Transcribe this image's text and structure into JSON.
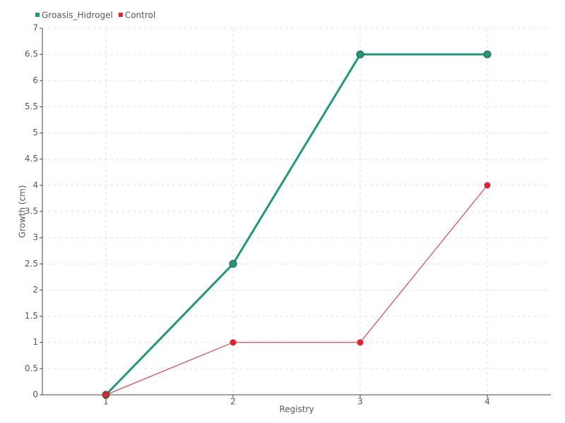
{
  "chart_data": {
    "type": "line",
    "x_label": "Registry",
    "y_label": "Growth (cm)",
    "x": [
      1,
      2,
      3,
      4
    ],
    "xlim": [
      0.5,
      4.5
    ],
    "xticks": [
      1,
      2,
      3,
      4
    ],
    "ylim": [
      0,
      7
    ],
    "yticks": [
      0,
      0.5,
      1,
      1.5,
      2,
      2.5,
      3,
      3.5,
      4,
      4.5,
      5,
      5.5,
      6,
      6.5,
      7
    ],
    "grid": true,
    "legend": "top-left",
    "series": [
      {
        "name": "Groasis_Hidrogel",
        "color": "#1f9a78",
        "values": [
          0,
          2.5,
          6.5,
          6.5
        ]
      },
      {
        "name": "Control",
        "color": "#e3212f",
        "values": [
          0,
          1,
          1,
          4
        ]
      }
    ]
  }
}
